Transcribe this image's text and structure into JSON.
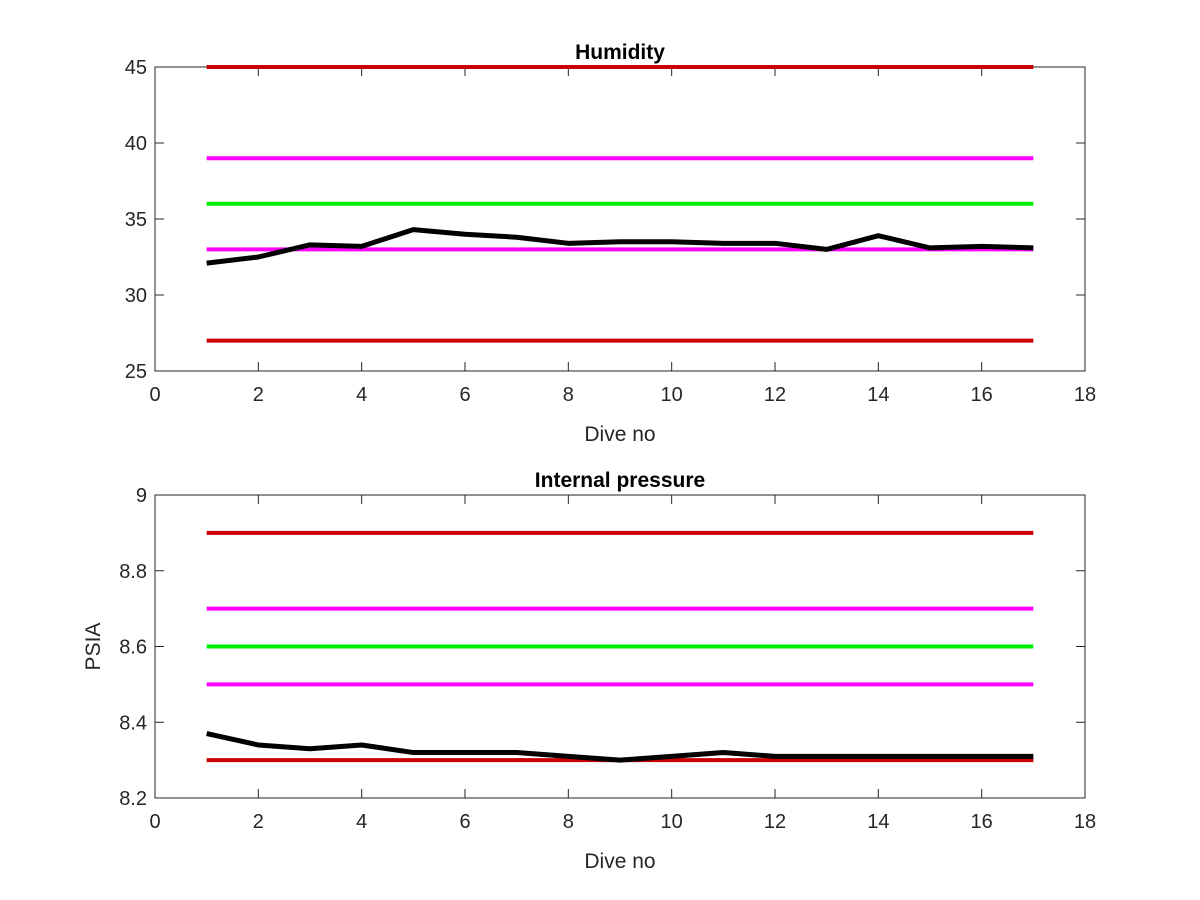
{
  "figure": {
    "background": "#ffffff"
  },
  "chart_data": [
    {
      "type": "line",
      "title": "Humidity",
      "xlabel": "Dive no",
      "ylabel": "",
      "xlim": [
        0,
        18
      ],
      "ylim": [
        25,
        45
      ],
      "xticks": [
        0,
        2,
        4,
        6,
        8,
        10,
        12,
        14,
        16,
        18
      ],
      "yticks": [
        25,
        30,
        35,
        40,
        45
      ],
      "xtick_labels": [
        "0",
        "2",
        "4",
        "6",
        "8",
        "10",
        "12",
        "14",
        "16",
        "18"
      ],
      "ytick_labels": [
        "25",
        "30",
        "35",
        "40",
        "45"
      ],
      "grid": false,
      "legend": "none",
      "threshold_lines": [
        {
          "y": 45,
          "x": [
            1,
            17
          ],
          "color": "#cc0000"
        },
        {
          "y": 39,
          "x": [
            1,
            17
          ],
          "color": "#ff00ff"
        },
        {
          "y": 36,
          "x": [
            1,
            17
          ],
          "color": "#00ee00"
        },
        {
          "y": 33,
          "x": [
            1,
            17
          ],
          "color": "#ff00ff"
        },
        {
          "y": 27,
          "x": [
            1,
            17
          ],
          "color": "#cc0000"
        }
      ],
      "series": [
        {
          "color": "#000000",
          "x": [
            1,
            2,
            3,
            4,
            5,
            6,
            7,
            8,
            9,
            10,
            11,
            12,
            13,
            14,
            15,
            16,
            17
          ],
          "values": [
            32.1,
            32.5,
            33.3,
            33.2,
            34.3,
            34.0,
            33.8,
            33.4,
            33.5,
            33.5,
            33.4,
            33.4,
            33.0,
            33.9,
            33.1,
            33.2,
            33.1
          ]
        }
      ]
    },
    {
      "type": "line",
      "title": "Internal pressure",
      "xlabel": "Dive no",
      "ylabel": "PSIA",
      "xlim": [
        0,
        18
      ],
      "ylim": [
        8.2,
        9
      ],
      "xticks": [
        0,
        2,
        4,
        6,
        8,
        10,
        12,
        14,
        16,
        18
      ],
      "yticks": [
        8.2,
        8.4,
        8.6,
        8.8,
        9
      ],
      "xtick_labels": [
        "0",
        "2",
        "4",
        "6",
        "8",
        "10",
        "12",
        "14",
        "16",
        "18"
      ],
      "ytick_labels": [
        "8.2",
        "8.4",
        "8.6",
        "8.8",
        "9"
      ],
      "grid": false,
      "legend": "none",
      "threshold_lines": [
        {
          "y": 8.9,
          "x": [
            1,
            17
          ],
          "color": "#cc0000"
        },
        {
          "y": 8.7,
          "x": [
            1,
            17
          ],
          "color": "#ff00ff"
        },
        {
          "y": 8.6,
          "x": [
            1,
            17
          ],
          "color": "#00ee00"
        },
        {
          "y": 8.5,
          "x": [
            1,
            17
          ],
          "color": "#ff00ff"
        },
        {
          "y": 8.3,
          "x": [
            1,
            17
          ],
          "color": "#cc0000"
        }
      ],
      "series": [
        {
          "color": "#000000",
          "x": [
            1,
            2,
            3,
            4,
            5,
            6,
            7,
            8,
            9,
            10,
            11,
            12,
            13,
            14,
            15,
            16,
            17
          ],
          "values": [
            8.37,
            8.34,
            8.33,
            8.34,
            8.32,
            8.32,
            8.32,
            8.31,
            8.3,
            8.31,
            8.32,
            8.31,
            8.31,
            8.31,
            8.31,
            8.31,
            8.31
          ]
        }
      ]
    }
  ]
}
